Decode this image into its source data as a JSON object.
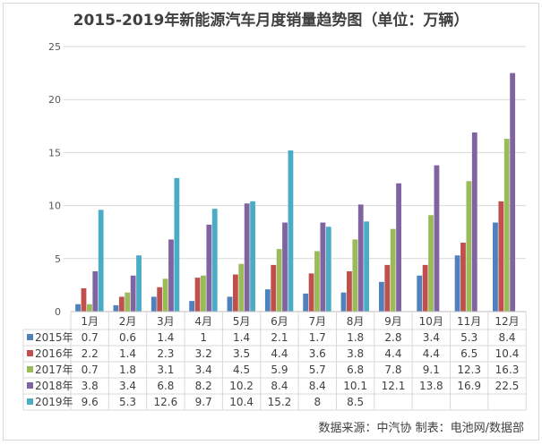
{
  "chart_data": {
    "type": "bar",
    "title": "2015-2019年新能源汽车月度销量趋势图（单位：万辆）",
    "categories": [
      "1月",
      "2月",
      "3月",
      "4月",
      "5月",
      "6月",
      "7月",
      "8月",
      "9月",
      "10月",
      "11月",
      "12月"
    ],
    "ylim": [
      0,
      25
    ],
    "yticks": [
      0,
      5,
      10,
      15,
      20,
      25
    ],
    "grid": true,
    "legend": "data-table-left",
    "series": [
      {
        "name": "2015年",
        "color": "#4f81bd",
        "values": [
          0.7,
          0.6,
          1.4,
          1.0,
          1.4,
          2.1,
          1.7,
          1.8,
          2.8,
          3.4,
          5.3,
          8.4
        ]
      },
      {
        "name": "2016年",
        "color": "#c0504d",
        "values": [
          2.2,
          1.4,
          2.3,
          3.2,
          3.5,
          4.4,
          3.6,
          3.8,
          4.4,
          4.4,
          6.5,
          10.4
        ]
      },
      {
        "name": "2017年",
        "color": "#9bbb59",
        "values": [
          0.7,
          1.8,
          3.1,
          3.4,
          4.5,
          5.9,
          5.7,
          6.8,
          7.8,
          9.1,
          12.3,
          16.3
        ]
      },
      {
        "name": "2018年",
        "color": "#8064a2",
        "values": [
          3.8,
          3.4,
          6.8,
          8.2,
          10.2,
          8.4,
          8.4,
          10.1,
          12.1,
          13.8,
          16.9,
          22.5
        ]
      },
      {
        "name": "2019年",
        "color": "#4bacc6",
        "values": [
          9.6,
          5.3,
          12.6,
          9.7,
          10.4,
          15.2,
          8,
          8.5,
          null,
          null,
          null,
          null
        ]
      }
    ],
    "source": "数据来源：中汽协  制表：电池网/数据部"
  }
}
